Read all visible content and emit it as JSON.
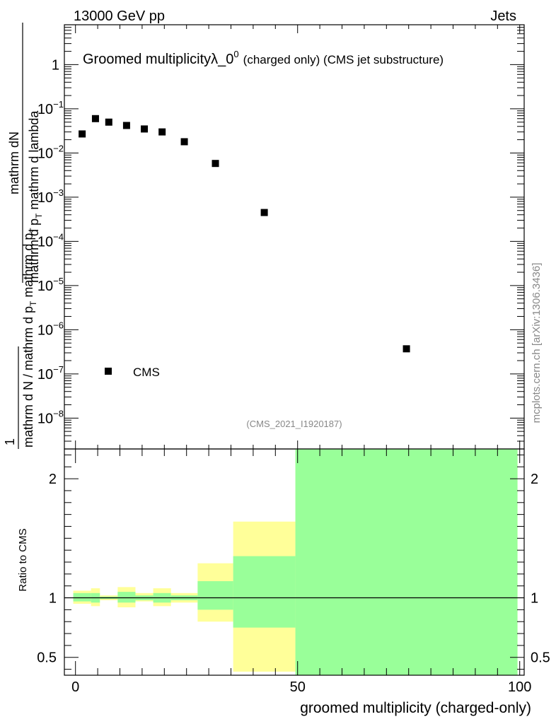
{
  "header": {
    "left": "13000 GeV pp",
    "right": "Jets"
  },
  "watermark": "mcplots.cern.ch [arXiv:1306.3436]",
  "chart_data": [
    {
      "type": "scatter",
      "panel": "main",
      "title": "Groomed multiplicityλ_0",
      "title_sup": "0",
      "title_suffix": "(charged only) (CMS jet substructure)",
      "ylabel_numerator": "mathrm dN",
      "ylabel_denominator_part1": "mathrm d p",
      "ylabel_denominator_sub1": "T",
      "ylabel_denominator_part2": " mathrm d lambda",
      "ylabel_prefactor_numerator": "1",
      "ylabel_prefactor_denominator_part1": "mathrm d N / mathrm d p",
      "ylabel_prefactor_denominator_sub": "T",
      "ylabel_prefactor_denominator_part2": " mathrm d p",
      "ylabel_prefactor_denominator_sub2": "T",
      "yscale": "log",
      "ylim": [
        2e-09,
        8
      ],
      "xlim": [
        -2.5,
        101
      ],
      "y_ticks": [
        {
          "value": 1,
          "label": "1",
          "exp": ""
        },
        {
          "value": 0.1,
          "label": "10",
          "exp": "−1"
        },
        {
          "value": 0.01,
          "label": "10",
          "exp": "−2"
        },
        {
          "value": 0.001,
          "label": "10",
          "exp": "−3"
        },
        {
          "value": 0.0001,
          "label": "10",
          "exp": "−4"
        },
        {
          "value": 1e-05,
          "label": "10",
          "exp": "−5"
        },
        {
          "value": 1e-06,
          "label": "10",
          "exp": "−6"
        },
        {
          "value": 1e-07,
          "label": "10",
          "exp": "−7"
        },
        {
          "value": 1e-08,
          "label": "10",
          "exp": "−8"
        }
      ],
      "series": [
        {
          "name": "CMS",
          "marker": "square",
          "color": "#000000",
          "x": [
            1.5,
            4.5,
            7.5,
            11.5,
            15.5,
            19.5,
            24.5,
            31.5,
            42.5,
            74.5
          ],
          "y": [
            0.027,
            0.06,
            0.05,
            0.042,
            0.035,
            0.03,
            0.018,
            0.0058,
            0.00045,
            3.7e-07
          ]
        }
      ],
      "legend_position": "bottom-left",
      "annotation": "(CMS_2021_I1920187)"
    },
    {
      "type": "area",
      "panel": "ratio",
      "ylabel": "Ratio to CMS",
      "xlabel": "groomed multiplicity (charged-only)",
      "xlim": [
        -2.5,
        101
      ],
      "ylim": [
        0.35,
        2.25
      ],
      "x_ticks": [
        0,
        50,
        100
      ],
      "y_ticks": [
        0.5,
        1,
        2
      ],
      "reference_line": 1,
      "bins": [
        {
          "lo": -0.5,
          "hi": 3.5,
          "yellow": [
            0.95,
            1.06
          ],
          "green": [
            0.97,
            1.04
          ]
        },
        {
          "lo": 3.5,
          "hi": 5.5,
          "yellow": [
            0.93,
            1.08
          ],
          "green": [
            0.96,
            1.04
          ]
        },
        {
          "lo": 5.5,
          "hi": 9.5,
          "yellow": [
            0.98,
            1.02
          ],
          "green": [
            0.99,
            1.01
          ]
        },
        {
          "lo": 9.5,
          "hi": 13.5,
          "yellow": [
            0.92,
            1.09
          ],
          "green": [
            0.96,
            1.05
          ]
        },
        {
          "lo": 13.5,
          "hi": 17.5,
          "yellow": [
            0.97,
            1.04
          ],
          "green": [
            0.98,
            1.02
          ]
        },
        {
          "lo": 17.5,
          "hi": 21.5,
          "yellow": [
            0.93,
            1.08
          ],
          "green": [
            0.96,
            1.04
          ]
        },
        {
          "lo": 21.5,
          "hi": 27.5,
          "yellow": [
            0.96,
            1.04
          ],
          "green": [
            0.98,
            1.02
          ]
        },
        {
          "lo": 27.5,
          "hi": 35.5,
          "yellow": [
            0.8,
            1.29
          ],
          "green": [
            0.9,
            1.14
          ]
        },
        {
          "lo": 35.5,
          "hi": 49.5,
          "yellow": [
            0.38,
            1.64
          ],
          "green": [
            0.75,
            1.35
          ]
        },
        {
          "lo": 49.5,
          "hi": 99.5,
          "yellow": [
            0.35,
            2.25
          ],
          "green": [
            0.35,
            2.25
          ]
        }
      ]
    }
  ],
  "colors": {
    "band_yellow": "#ffff99",
    "band_green": "#99ff99",
    "annotation_grey": "#888888"
  }
}
